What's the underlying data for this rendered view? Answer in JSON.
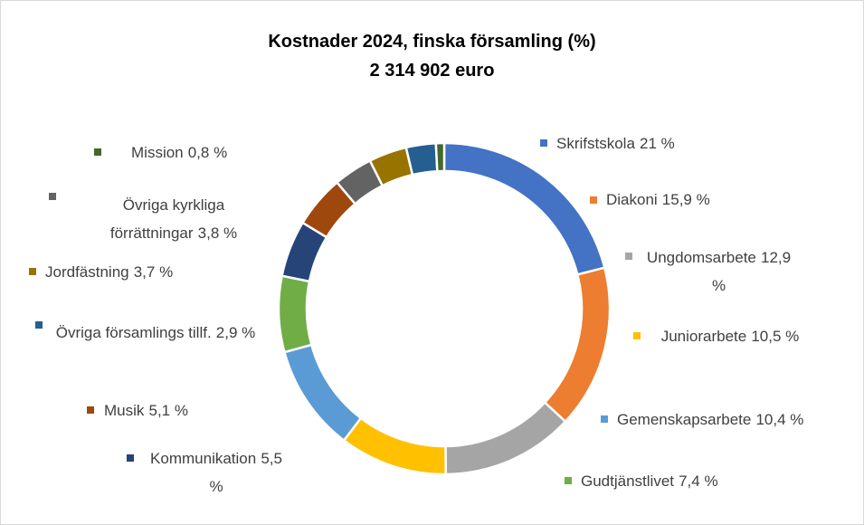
{
  "chart_data": {
    "type": "donut",
    "title": "Kostnader 2024, finska församling (%)",
    "subtitle": "2 314 902 euro",
    "categories": [
      "Skrifstskola",
      "Diakoni",
      "Ungdomsarbete",
      "Juniorarbete",
      "Gemenskapsarbete",
      "Gudtjänstlivet",
      "Kommunikation",
      "Musik",
      "Övriga kyrkliga förrättningar",
      "Jordfästning",
      "Övriga församlings tillf.",
      "Mission"
    ],
    "values": [
      21,
      15.9,
      12.9,
      10.5,
      10.4,
      7.4,
      5.5,
      5.1,
      3.8,
      3.7,
      2.9,
      0.8
    ],
    "value_labels": [
      "21 %",
      "15,9 %",
      "12,9 %",
      "10,5 %",
      "10,4 %",
      "7,4 %",
      "5,5 %",
      "5,1 %",
      "3,8 %",
      "3,7 %",
      "2,9 %",
      "0,8 %"
    ],
    "colors": [
      "#4472c4",
      "#ed7d31",
      "#a5a5a5",
      "#ffc000",
      "#5b9bd5",
      "#70ad47",
      "#264478",
      "#9e480e",
      "#636363",
      "#997300",
      "#255e91",
      "#43682b"
    ]
  }
}
